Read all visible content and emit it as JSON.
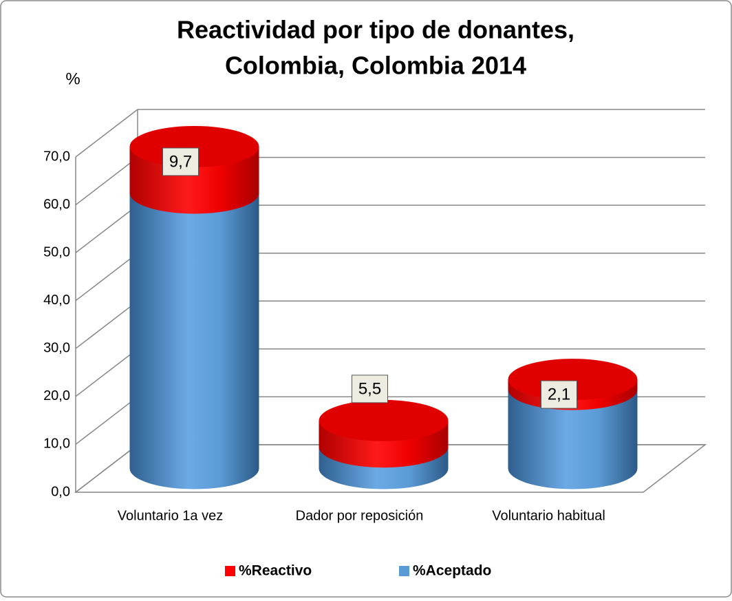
{
  "chart_data": {
    "type": "bar3d-cylinder-stacked",
    "title": [
      "Reactividad por tipo de donantes,",
      "Colombia, Colombia 2014"
    ],
    "y_axis_label": "%",
    "categories": [
      "Voluntario 1a vez",
      "Dador por reposición",
      "Voluntario habitual"
    ],
    "series": [
      {
        "name": "%Reactivo",
        "color": "#ff0000",
        "values": [
          9.7,
          5.5,
          2.1
        ],
        "value_labels": [
          "9,7",
          "5,5",
          "2,1"
        ]
      },
      {
        "name": "%Aceptado",
        "color": "#5b9bd5",
        "values": [
          57.5,
          4.5,
          16.5
        ]
      }
    ],
    "ylim": [
      0,
      70
    ],
    "yticks": [
      {
        "value": 0,
        "label": "0,0"
      },
      {
        "value": 10,
        "label": "10,0"
      },
      {
        "value": 20,
        "label": "20,0"
      },
      {
        "value": 30,
        "label": "30,0"
      },
      {
        "value": 40,
        "label": "40,0"
      },
      {
        "value": 50,
        "label": "50,0"
      },
      {
        "value": 60,
        "label": "60,0"
      },
      {
        "value": 70,
        "label": "70,0"
      }
    ],
    "grid": true,
    "legend": "bottom"
  }
}
